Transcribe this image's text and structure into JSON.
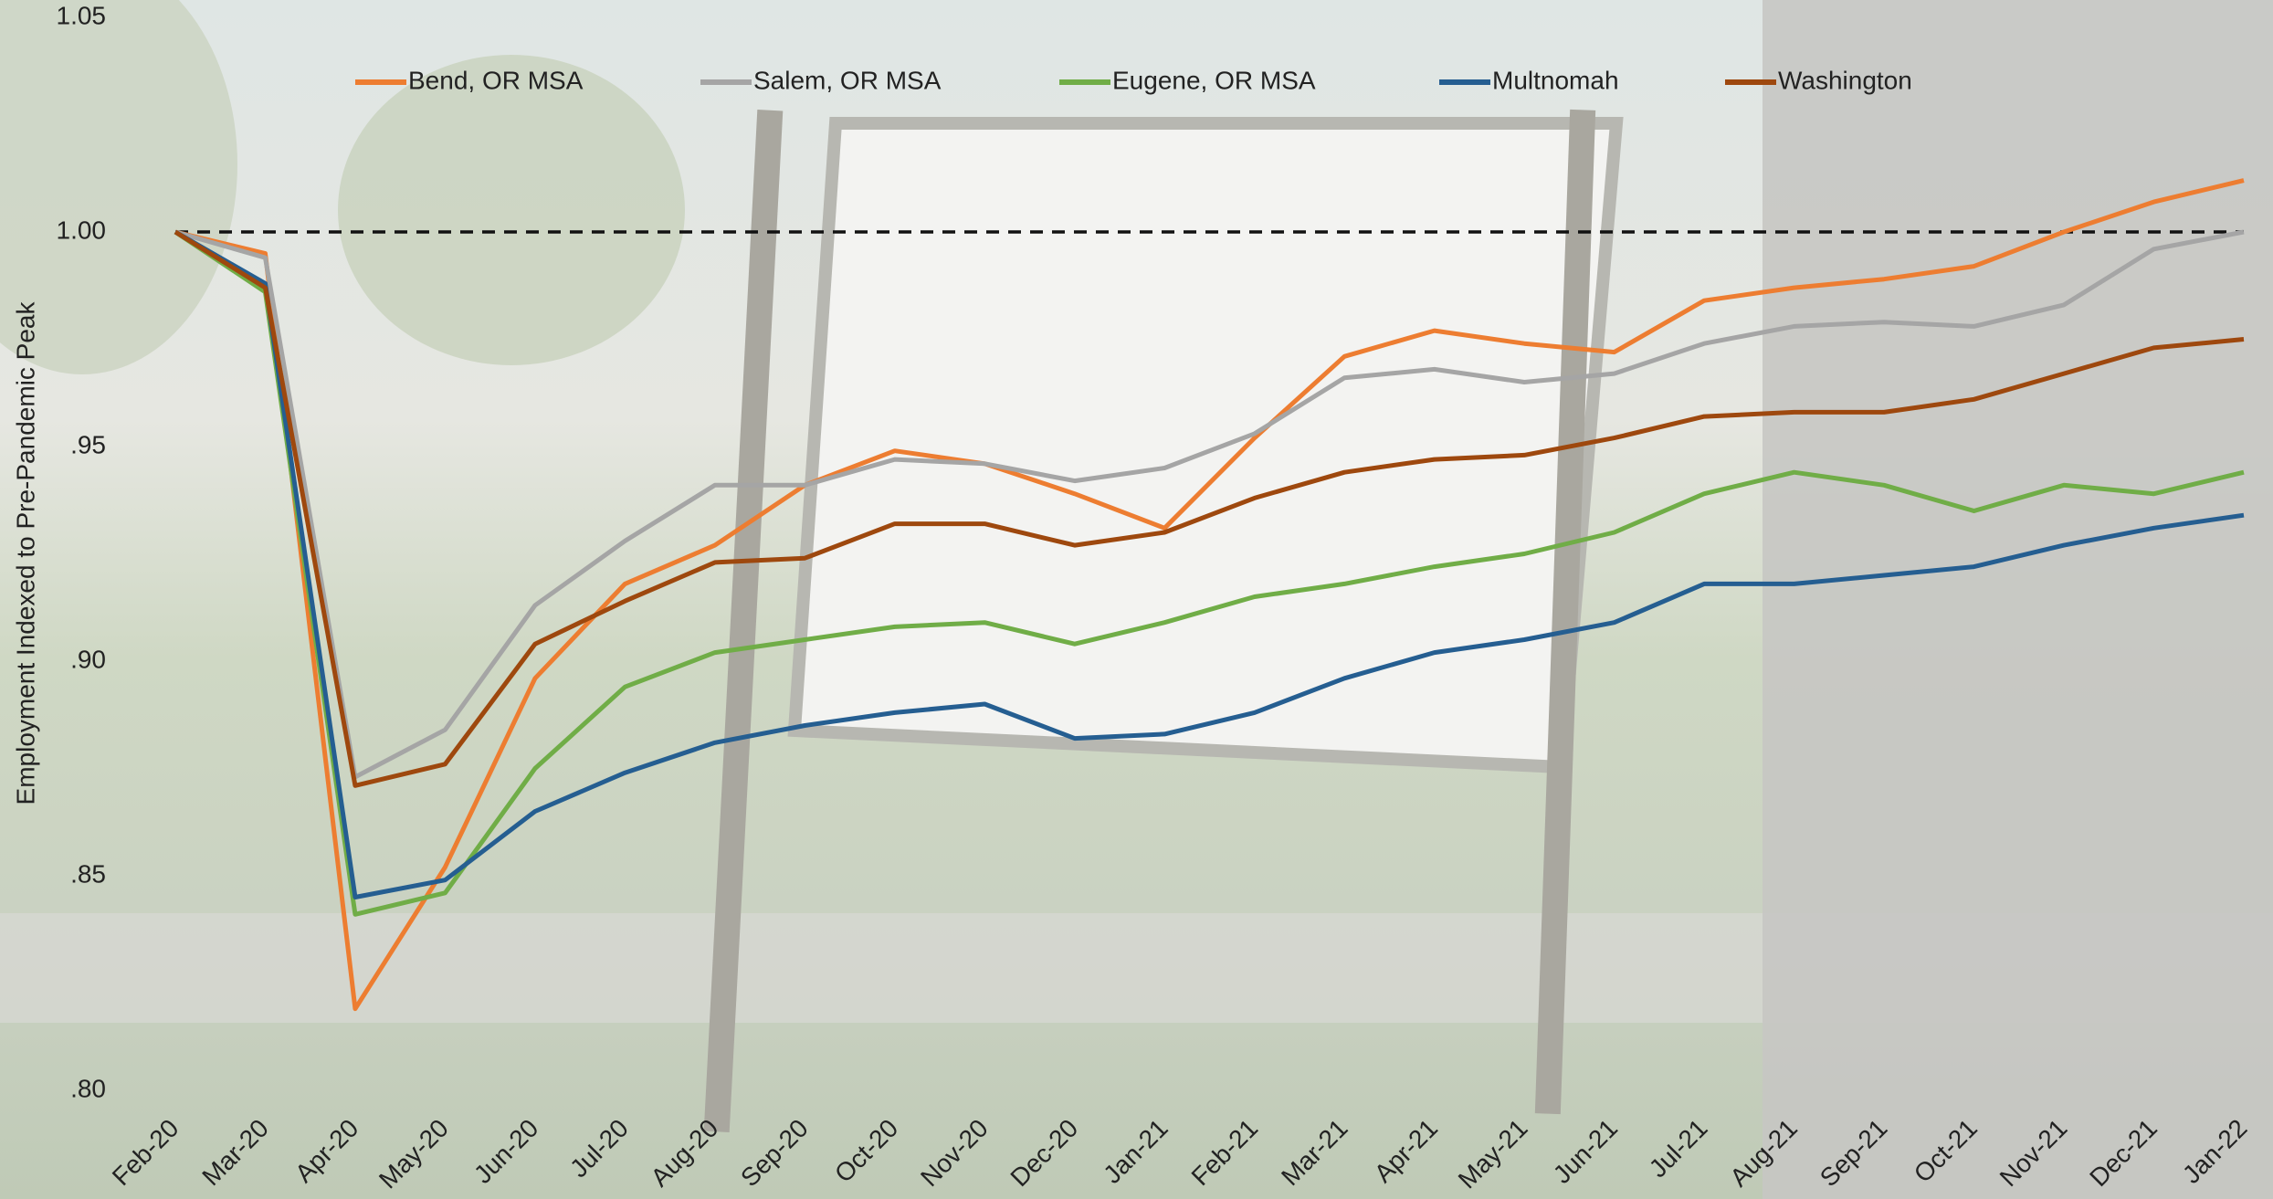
{
  "chart_data": {
    "type": "line",
    "y_label": "Employment Indexed to Pre-Pandemic Peak",
    "categories": [
      "Feb-20",
      "Mar-20",
      "Apr-20",
      "May-20",
      "Jun-20",
      "Jul-20",
      "Aug-20",
      "Sep-20",
      "Oct-20",
      "Nov-20",
      "Dec-20",
      "Jan-21",
      "Feb-21",
      "Mar-21",
      "Apr-21",
      "May-21",
      "Jun-21",
      "Jul-21",
      "Aug-21",
      "Sep-21",
      "Oct-21",
      "Nov-21",
      "Dec-21",
      "Jan-22"
    ],
    "series": [
      {
        "name": "Bend, OR MSA",
        "color": "#ed7d31",
        "values": [
          1.0,
          0.995,
          0.819,
          0.852,
          0.896,
          0.918,
          0.927,
          0.941,
          0.949,
          0.946,
          0.939,
          0.931,
          0.952,
          0.971,
          0.977,
          0.974,
          0.972,
          0.984,
          0.987,
          0.989,
          0.992,
          1.0,
          1.007,
          1.012
        ]
      },
      {
        "name": "Salem, OR MSA",
        "color": "#a5a5a5",
        "values": [
          1.0,
          0.994,
          0.873,
          0.884,
          0.913,
          0.928,
          0.941,
          0.941,
          0.947,
          0.946,
          0.942,
          0.945,
          0.953,
          0.966,
          0.968,
          0.965,
          0.967,
          0.974,
          0.978,
          0.979,
          0.978,
          0.983,
          0.996,
          1.0
        ]
      },
      {
        "name": "Eugene, OR MSA",
        "color": "#70ad47",
        "values": [
          1.0,
          0.986,
          0.841,
          0.846,
          0.875,
          0.894,
          0.902,
          0.905,
          0.908,
          0.909,
          0.904,
          0.909,
          0.915,
          0.918,
          0.922,
          0.925,
          0.93,
          0.939,
          0.944,
          0.941,
          0.935,
          0.941,
          0.939,
          0.944
        ]
      },
      {
        "name": "Multnomah",
        "color": "#255e91",
        "values": [
          1.0,
          0.988,
          0.845,
          0.849,
          0.865,
          0.874,
          0.881,
          0.885,
          0.888,
          0.89,
          0.882,
          0.883,
          0.888,
          0.896,
          0.902,
          0.905,
          0.909,
          0.918,
          0.918,
          0.92,
          0.922,
          0.927,
          0.931,
          0.934
        ]
      },
      {
        "name": "Washington",
        "color": "#9e480e",
        "values": [
          1.0,
          0.987,
          0.871,
          0.876,
          0.904,
          0.914,
          0.923,
          0.924,
          0.932,
          0.932,
          0.927,
          0.93,
          0.938,
          0.944,
          0.947,
          0.948,
          0.952,
          0.957,
          0.958,
          0.958,
          0.961,
          0.967,
          0.973,
          0.975
        ]
      }
    ],
    "ylim": [
      0.8,
      1.05
    ],
    "yticks": [
      {
        "value": 0.8,
        "label": ".80"
      },
      {
        "value": 0.85,
        "label": ".85"
      },
      {
        "value": 0.9,
        "label": ".90"
      },
      {
        "value": 0.95,
        "label": ".95"
      },
      {
        "value": 1,
        "label": "1.00"
      },
      1.05
    ],
    "reference_line": 1,
    "grid": false,
    "legend": "top"
  }
}
